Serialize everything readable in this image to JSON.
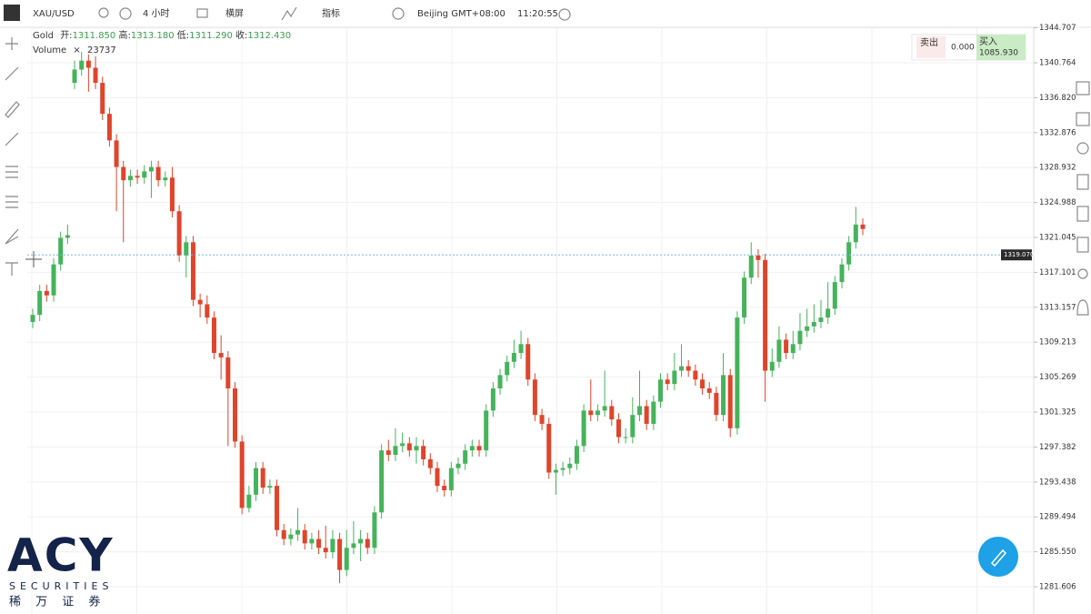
{
  "header": {
    "symbol": "XAU/USD",
    "interval": "4 小时",
    "orientation": "横屏",
    "indicators": "指标",
    "timezone": "Beijing GMT+08:00",
    "clock": "11:20:55"
  },
  "legend": {
    "name": "Gold",
    "open_label": "开:",
    "open": "1311.850",
    "high_label": "高:",
    "high": "1313.180",
    "low_label": "低:",
    "low": "1311.290",
    "close_label": "收:",
    "close": "1312.430",
    "volume_label": "Volume",
    "volume_close": "×",
    "volume": "23737"
  },
  "trade_panel": {
    "sell_label": "卖出",
    "sell": "0.000",
    "buy_label": "买入",
    "buy": "1085.930"
  },
  "logo": {
    "brand": "ACY",
    "sub": "SECURITIES",
    "chinese": "稀 万 证 券"
  },
  "chart_data": {
    "type": "candlestick",
    "up_color": "#45b35b",
    "down_color": "#e0442b",
    "grid": true,
    "ylim": [
      1278.53,
      1344.77
    ],
    "yticks": [
      1344.707,
      1340.764,
      {
        "value": 1336.82,
        "label": "1336.820"
      },
      1332.876,
      1328.932,
      1324.988,
      1321.045,
      1317.101,
      1313.157,
      1309.213,
      1305.269,
      1301.325,
      1297.382,
      1293.438,
      1289.494,
      {
        "value": 1285.55,
        "label": "1285.550"
      },
      1281.606
    ],
    "last_price": {
      "value": 1319.07,
      "label": "1319.070"
    },
    "open": [
      1311.5,
      1312.3,
      1315.0,
      1314.5,
      1318.0,
      1321.0,
      1338.5,
      1340.0,
      1341.0,
      1340.2,
      1338.5,
      1335.0,
      1332.0,
      1329.0,
      1327.5,
      1328.0,
      1327.8,
      1328.5,
      1329.0,
      1327.5,
      1327.8,
      1324.0,
      1319.0,
      1320.5,
      1314.0,
      1313.5,
      1312.0,
      1308.0,
      1307.5,
      1304.0,
      1298.0,
      1290.5,
      1292.0,
      1295.0,
      1292.8,
      1293.0,
      1288.0,
      1287.0,
      1287.5,
      1288.0,
      1286.5,
      1287.0,
      1286.0,
      1285.5,
      1287.0,
      1283.5,
      1286.0,
      1286.5,
      1287.0,
      1286.0,
      1290.0,
      1297.0,
      1296.5,
      1297.5,
      1297.8,
      1297.0,
      1297.5,
      1296.0,
      1295.0,
      1293.0,
      1292.5,
      1295.0,
      1295.5,
      1297.0,
      1297.5,
      1297.0,
      1301.5,
      1304.0,
      1305.5,
      1307.0,
      1308.0,
      1309.0,
      1305.0,
      1301.0,
      1300.0,
      1294.5,
      1294.8,
      1295.0,
      1295.5,
      1297.5,
      1301.5,
      1301.0,
      1301.5,
      1302.0,
      1300.5,
      1298.5,
      1298.5,
      1301.0,
      1302.0,
      1300.0,
      1302.5,
      1305.0,
      1304.5,
      1306.0,
      1306.5,
      1306.0,
      1305.0,
      1304.0,
      1303.5,
      1301.0,
      1305.5,
      1299.5,
      1312.0,
      1316.5,
      1319.0,
      1318.5,
      1306.0,
      1307.0,
      1309.5,
      1308.0,
      1309.0,
      1310.5,
      1311.0,
      1311.5,
      1312.0,
      1313.0,
      1316.0,
      1318.0,
      1320.5,
      1322.5
    ],
    "high": [
      1313.0,
      1315.7,
      1315.7,
      1318.7,
      1321.7,
      1322.5,
      1341.0,
      1342.0,
      1341.7,
      1341.5,
      1339.2,
      1335.7,
      1332.7,
      1329.7,
      1328.7,
      1328.7,
      1329.2,
      1329.7,
      1329.7,
      1328.5,
      1329.0,
      1324.7,
      1321.2,
      1321.2,
      1314.7,
      1314.5,
      1312.7,
      1310.0,
      1308.2,
      1304.7,
      1298.7,
      1293.0,
      1295.7,
      1295.7,
      1293.7,
      1293.7,
      1288.7,
      1288.2,
      1290.5,
      1288.7,
      1287.7,
      1288.0,
      1288.5,
      1288.0,
      1287.7,
      1288.0,
      1289.0,
      1288.0,
      1287.7,
      1290.7,
      1297.7,
      1298.2,
      1299.5,
      1299.0,
      1298.5,
      1298.5,
      1298.2,
      1296.7,
      1295.7,
      1293.7,
      1295.7,
      1296.2,
      1297.7,
      1298.2,
      1298.2,
      1302.2,
      1304.7,
      1306.2,
      1307.7,
      1309.5,
      1310.5,
      1309.7,
      1305.7,
      1301.7,
      1300.7,
      1295.5,
      1295.7,
      1296.2,
      1298.2,
      1302.2,
      1305.0,
      1302.2,
      1306.0,
      1302.7,
      1301.2,
      1299.5,
      1303.0,
      1306.0,
      1302.7,
      1303.2,
      1305.7,
      1305.7,
      1308.0,
      1309.0,
      1307.2,
      1306.7,
      1305.7,
      1304.7,
      1304.2,
      1308.0,
      1306.2,
      1312.7,
      1317.2,
      1320.5,
      1319.7,
      1319.2,
      1308.5,
      1311.0,
      1310.2,
      1310.5,
      1312.5,
      1313.0,
      1313.5,
      1314.0,
      1316.0,
      1316.7,
      1318.7,
      1321.2,
      1324.5,
      1323.2
    ],
    "low": [
      1310.8,
      1311.6,
      1313.8,
      1313.8,
      1317.3,
      1320.3,
      1337.8,
      1339.3,
      1337.5,
      1337.8,
      1334.3,
      1331.3,
      1324.0,
      1320.5,
      1326.8,
      1327.1,
      1327.1,
      1325.5,
      1326.8,
      1326.8,
      1323.3,
      1318.3,
      1316.5,
      1313.3,
      1312.0,
      1311.3,
      1307.3,
      1305.0,
      1297.5,
      1297.3,
      1289.8,
      1290.0,
      1291.3,
      1292.1,
      1292.1,
      1287.3,
      1286.3,
      1286.3,
      1286.8,
      1285.8,
      1285.8,
      1285.3,
      1284.8,
      1284.8,
      1282.0,
      1282.8,
      1285.3,
      1284.5,
      1285.3,
      1285.3,
      1289.3,
      1295.8,
      1295.8,
      1296.8,
      1296.3,
      1295.5,
      1295.3,
      1294.3,
      1292.3,
      1291.8,
      1291.8,
      1294.3,
      1294.8,
      1296.3,
      1296.3,
      1296.3,
      1300.8,
      1303.3,
      1304.8,
      1306.3,
      1307.3,
      1304.3,
      1300.3,
      1299.3,
      1293.8,
      1292.0,
      1294.1,
      1294.3,
      1294.8,
      1296.8,
      1300.3,
      1300.3,
      1300.8,
      1299.8,
      1297.8,
      1297.8,
      1297.8,
      1300.3,
      1299.3,
      1299.3,
      1301.8,
      1303.8,
      1303.8,
      1305.3,
      1305.3,
      1304.3,
      1303.3,
      1302.8,
      1300.3,
      1300.3,
      1298.5,
      1298.8,
      1311.3,
      1315.8,
      1316.5,
      1302.5,
      1305.3,
      1306.3,
      1307.3,
      1307.3,
      1308.3,
      1309.8,
      1310.3,
      1310.8,
      1311.3,
      1312.3,
      1315.3,
      1317.3,
      1319.8,
      1321.3
    ],
    "close": [
      1312.3,
      1315.0,
      1314.5,
      1318.0,
      1321.0,
      1321.3,
      1340.0,
      1341.0,
      1340.2,
      1338.5,
      1335.0,
      1332.0,
      1329.0,
      1327.5,
      1328.0,
      1327.8,
      1328.5,
      1329.0,
      1327.5,
      1327.8,
      1324.0,
      1319.0,
      1320.5,
      1314.0,
      1313.5,
      1312.0,
      1308.0,
      1307.5,
      1304.0,
      1298.0,
      1290.5,
      1292.0,
      1295.0,
      1292.8,
      1293.0,
      1288.0,
      1287.0,
      1287.5,
      1288.0,
      1286.5,
      1287.0,
      1286.0,
      1285.5,
      1287.0,
      1283.5,
      1286.0,
      1286.5,
      1287.0,
      1286.0,
      1290.0,
      1297.0,
      1296.5,
      1297.5,
      1297.8,
      1297.0,
      1297.5,
      1296.0,
      1295.0,
      1293.0,
      1292.5,
      1295.0,
      1295.5,
      1297.0,
      1297.5,
      1297.0,
      1301.5,
      1304.0,
      1305.5,
      1307.0,
      1308.0,
      1309.0,
      1305.0,
      1301.0,
      1300.0,
      1294.5,
      1294.8,
      1295.0,
      1295.5,
      1297.5,
      1301.5,
      1301.0,
      1301.5,
      1302.0,
      1300.5,
      1298.5,
      1298.5,
      1301.0,
      1302.0,
      1300.0,
      1302.5,
      1305.0,
      1304.5,
      1306.0,
      1306.5,
      1306.0,
      1305.0,
      1304.0,
      1303.5,
      1301.0,
      1305.5,
      1299.5,
      1312.0,
      1316.5,
      1319.0,
      1318.5,
      1306.0,
      1307.0,
      1309.5,
      1308.0,
      1309.0,
      1310.5,
      1311.0,
      1311.5,
      1312.0,
      1313.0,
      1316.0,
      1318.0,
      1320.5,
      1322.5,
      1322.0
    ]
  }
}
